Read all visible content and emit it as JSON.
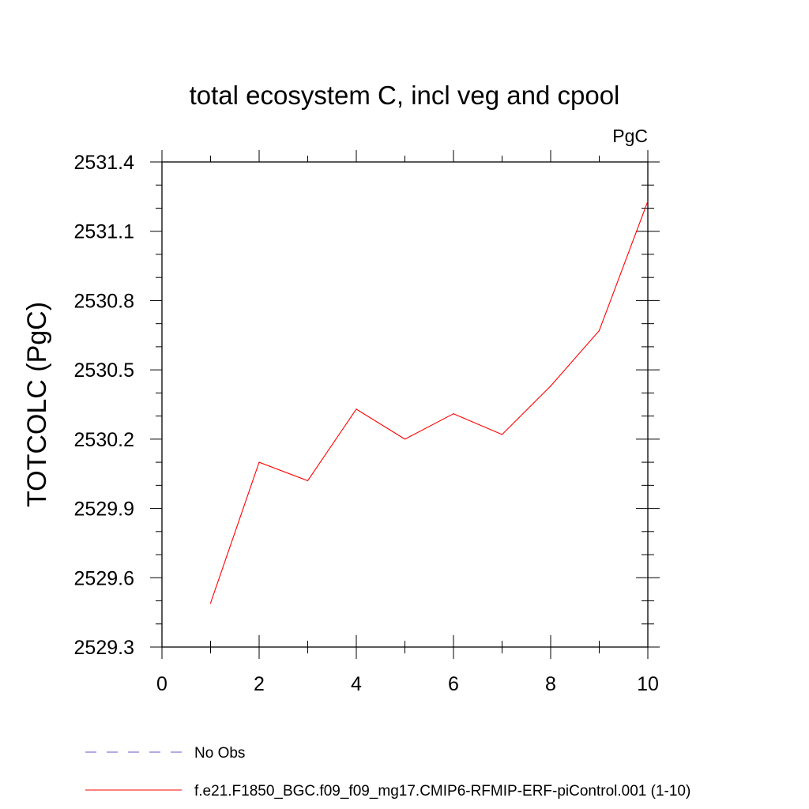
{
  "chart_data": {
    "type": "line",
    "title": "total ecosystem C, incl veg and cpool",
    "units": "PgC",
    "xlabel": "",
    "ylabel": "TOTCOLC  (PgC)",
    "xlim": [
      0,
      10
    ],
    "ylim": [
      2529.3,
      2531.4
    ],
    "x_ticks": [
      0,
      2,
      4,
      6,
      8,
      10
    ],
    "x_tick_labels": [
      "0",
      "2",
      "4",
      "6",
      "8",
      "10"
    ],
    "y_ticks": [
      2529.3,
      2529.6,
      2529.9,
      2530.2,
      2530.5,
      2530.8,
      2531.1,
      2531.4
    ],
    "y_tick_labels": [
      "2529.3",
      "2529.6",
      "2529.9",
      "2530.2",
      "2530.5",
      "2530.8",
      "2531.1",
      "2531.4"
    ],
    "series": [
      {
        "name": "f.e21.F1850_BGC.f09_f09_mg17.CMIP6-RFMIP-ERF-piControl.001 (1-10)",
        "color": "#ff0000",
        "x": [
          1,
          2,
          3,
          4,
          5,
          6,
          7,
          8,
          9,
          10
        ],
        "values": [
          2529.49,
          2530.1,
          2530.02,
          2530.33,
          2530.2,
          2530.31,
          2530.22,
          2530.43,
          2530.67,
          2531.23
        ]
      }
    ],
    "legend": [
      {
        "label": "No Obs",
        "color": "#6a5acd",
        "style": "dashed"
      },
      {
        "label": "f.e21.F1850_BGC.f09_f09_mg17.CMIP6-RFMIP-ERF-piControl.001 (1-10)",
        "color": "#ff0000",
        "style": "solid"
      }
    ]
  }
}
